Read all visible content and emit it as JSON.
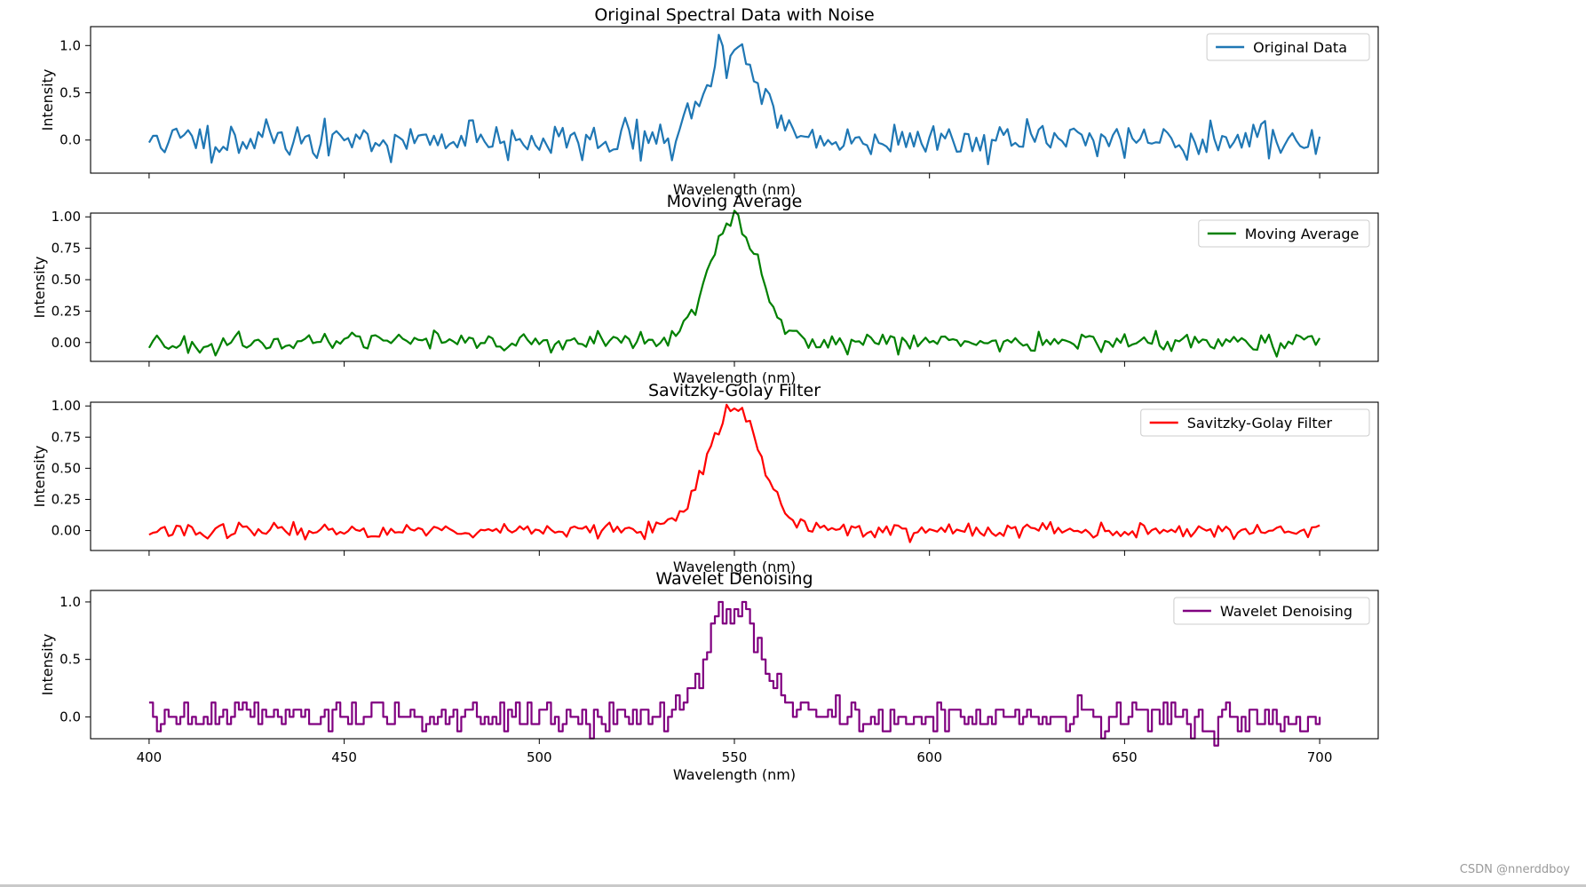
{
  "chart_data": [
    {
      "type": "line",
      "title": "Original Spectral Data with Noise",
      "xlabel": "Wavelength (nm)",
      "ylabel": "Intensity",
      "xlim": [
        385,
        715
      ],
      "ylim": [
        -0.35,
        1.2
      ],
      "xticks": [
        400,
        450,
        500,
        550,
        600,
        650,
        700
      ],
      "yticks": [
        0.0,
        0.5,
        1.0
      ],
      "ytick_labels": [
        "0.0",
        "0.5",
        "1.0"
      ],
      "show_xtick_labels": false,
      "legend_position": "top-right",
      "series": [
        {
          "name": "Original Data",
          "color": "#1f77b4",
          "noise": 0.095,
          "seed": 11,
          "peak": 1.0,
          "peak_width": 6.5,
          "peak_jitter": 0.13
        }
      ]
    },
    {
      "type": "line",
      "title": "Moving Average",
      "xlabel": "Wavelength (nm)",
      "ylabel": "Intensity",
      "xlim": [
        385,
        715
      ],
      "ylim": [
        -0.15,
        1.03
      ],
      "xticks": [
        400,
        450,
        500,
        550,
        600,
        650,
        700
      ],
      "yticks": [
        0.0,
        0.25,
        0.5,
        0.75,
        1.0
      ],
      "ytick_labels": [
        "0.00",
        "0.25",
        "0.50",
        "0.75",
        "1.00"
      ],
      "show_xtick_labels": false,
      "legend_position": "top-right",
      "series": [
        {
          "name": "Moving Average",
          "color": "#008000",
          "noise": 0.038,
          "seed": 23,
          "peak": 0.98,
          "peak_width": 6.5,
          "peak_jitter": 0.02
        }
      ]
    },
    {
      "type": "line",
      "title": "Savitzky-Golay Filter",
      "xlabel": "Wavelength (nm)",
      "ylabel": "Intensity",
      "xlim": [
        385,
        715
      ],
      "ylim": [
        -0.16,
        1.03
      ],
      "xticks": [
        400,
        450,
        500,
        550,
        600,
        650,
        700
      ],
      "yticks": [
        0.0,
        0.25,
        0.5,
        0.75,
        1.0
      ],
      "ytick_labels": [
        "0.00",
        "0.25",
        "0.50",
        "0.75",
        "1.00"
      ],
      "show_xtick_labels": false,
      "legend_position": "top-right",
      "series": [
        {
          "name": "Savitzky-Golay Filter",
          "color": "#ff0000",
          "noise": 0.03,
          "seed": 37,
          "peak": 0.98,
          "peak_width": 6.8,
          "peak_jitter": 0.005
        }
      ]
    },
    {
      "type": "line",
      "title": "Wavelet Denoising",
      "xlabel": "Wavelength (nm)",
      "ylabel": "Intensity",
      "xlim": [
        385,
        715
      ],
      "ylim": [
        -0.19,
        1.1
      ],
      "xticks": [
        400,
        450,
        500,
        550,
        600,
        650,
        700
      ],
      "yticks": [
        0.0,
        0.5,
        1.0
      ],
      "ytick_labels": [
        "0.0",
        "0.5",
        "1.0"
      ],
      "show_xtick_labels": true,
      "legend_position": "top-right",
      "series": [
        {
          "name": "Wavelet Denoising",
          "color": "#800080",
          "noise": 0.075,
          "seed": 51,
          "peak": 1.0,
          "peak_width": 6.5,
          "peak_jitter": 0.09
        }
      ]
    }
  ],
  "watermark": "CSDN @nnerddboy"
}
